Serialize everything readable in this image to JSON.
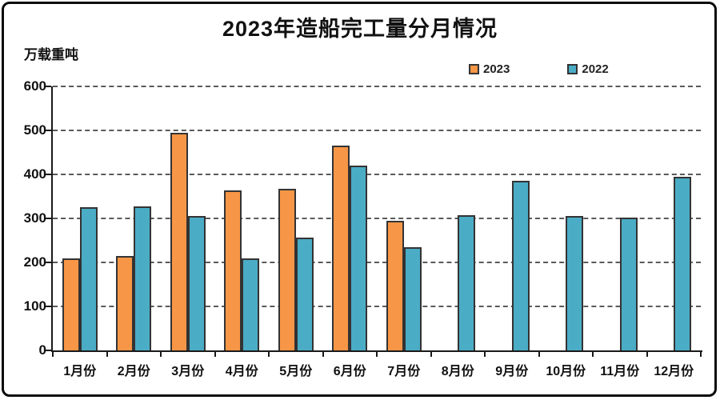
{
  "title": "2023年造船完工量分月情况",
  "y_axis_unit": "万载重吨",
  "colors": {
    "series_2023": "#F79646",
    "series_2022": "#4BACC6",
    "bar_border": "#333333",
    "grid": "#5a5a5a",
    "axis": "#1a1a1a",
    "frame": "#0a0a0a",
    "background": "#ffffff"
  },
  "chart_data": {
    "type": "bar",
    "title": "2023年造船完工量分月情况",
    "ylabel": "万载重吨",
    "xlabel": "",
    "categories": [
      "1月份",
      "2月份",
      "3月份",
      "4月份",
      "5月份",
      "6月份",
      "7月份",
      "8月份",
      "9月份",
      "10月份",
      "11月份",
      "12月份"
    ],
    "series": [
      {
        "name": "2023",
        "color": "#F79646",
        "values": [
          210,
          214,
          494,
          363,
          368,
          465,
          295,
          null,
          null,
          null,
          null,
          null
        ]
      },
      {
        "name": "2022",
        "color": "#4BACC6",
        "values": [
          325,
          328,
          306,
          210,
          256,
          420,
          234,
          308,
          386,
          306,
          302,
          394
        ]
      }
    ],
    "ylim": [
      0,
      600
    ],
    "ytick_interval": 100,
    "yticks": [
      "600",
      "500",
      "400",
      "300",
      "200",
      "100",
      "0"
    ],
    "grid": "horizontal-dashed",
    "legend_position": "top-right"
  }
}
